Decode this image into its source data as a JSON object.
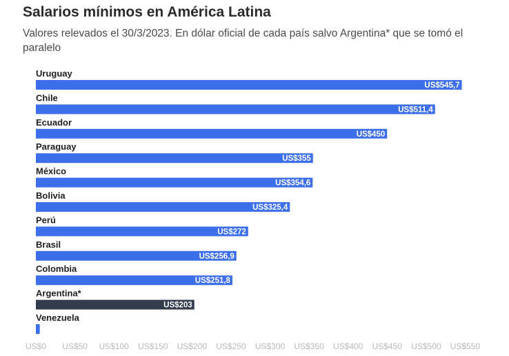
{
  "header": {
    "title": "Salarios mínimos en América Latina",
    "subtitle": "Valores relevados el 30/3/2023. En dólar oficial de cada país salvo Argentina* que se tomó el paralelo"
  },
  "colors": {
    "bar": "#3d6fea",
    "bar_highlight": "#333c4d",
    "tick_text": "#b8b8b8"
  },
  "chart_data": {
    "type": "bar",
    "orientation": "horizontal",
    "title": "Salarios mínimos en América Latina",
    "subtitle": "Valores relevados el 30/3/2023. En dólar oficial de cada país salvo Argentina* que se tomó el paralelo",
    "xlabel": "",
    "ylabel": "",
    "xlim": [
      0,
      550
    ],
    "grid": false,
    "categories": [
      "Uruguay",
      "Chile",
      "Ecuador",
      "Paraguay",
      "México",
      "Bolivia",
      "Perú",
      "Brasil",
      "Colombia",
      "Argentina*",
      "Venezuela"
    ],
    "values": [
      545.7,
      511.4,
      450,
      355,
      354.6,
      325.4,
      272,
      256.9,
      251.8,
      203,
      5
    ],
    "value_labels": [
      "US$545,7",
      "US$511,4",
      "US$450",
      "US$355",
      "US$354,6",
      "US$325,4",
      "US$272",
      "US$256,9",
      "US$251,8",
      "US$203",
      ""
    ],
    "highlight": [
      false,
      false,
      false,
      false,
      false,
      false,
      false,
      false,
      false,
      true,
      false
    ],
    "x_ticks": [
      0,
      50,
      100,
      150,
      200,
      250,
      300,
      350,
      400,
      450,
      500,
      550
    ],
    "x_tick_labels": [
      "US$0",
      "US$50",
      "US$100",
      "US$150",
      "US$200",
      "US$250",
      "US$300",
      "US$350",
      "US$400",
      "US$450",
      "US$500",
      "US$550"
    ]
  }
}
